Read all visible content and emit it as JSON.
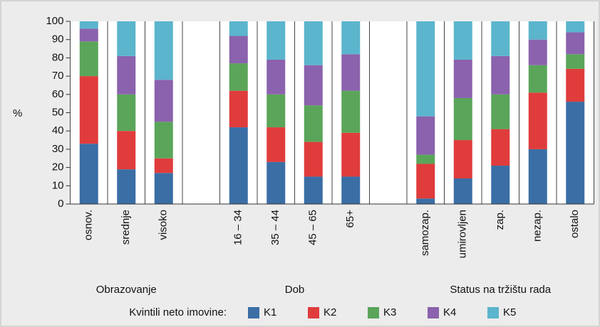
{
  "chart_data": {
    "type": "stacked_bar",
    "y_label": "%",
    "legend_title": "Kvintili neto imovine:",
    "groups": [
      "Obrazovanje",
      "Dob",
      "Status na tržištu rada"
    ],
    "categories": [
      "osnov.",
      "srednje",
      "visoko",
      null,
      "16 – 34",
      "35 – 44",
      "45 – 65",
      "65+",
      null,
      "samozap.",
      "umirovljen",
      "zap.",
      "nezap.",
      "ostalo"
    ],
    "series": [
      {
        "name": "K1",
        "color": "#3a6ea5",
        "values": [
          33,
          19,
          17,
          null,
          42,
          23,
          15,
          15,
          null,
          3,
          14,
          21,
          30,
          56
        ]
      },
      {
        "name": "K2",
        "color": "#e03c3c",
        "values": [
          37,
          21,
          8,
          null,
          20,
          19,
          19,
          24,
          null,
          19,
          21,
          20,
          31,
          18
        ]
      },
      {
        "name": "K3",
        "color": "#5aa55a",
        "values": [
          19,
          20,
          20,
          null,
          15,
          18,
          20,
          23,
          null,
          5,
          23,
          19,
          15,
          8
        ]
      },
      {
        "name": "K4",
        "color": "#8a62ad",
        "values": [
          7,
          21,
          23,
          null,
          15,
          19,
          22,
          20,
          null,
          21,
          21,
          21,
          14,
          12
        ]
      },
      {
        "name": "K5",
        "color": "#5bb5cc",
        "values": [
          4,
          19,
          32,
          null,
          8,
          21,
          24,
          18,
          null,
          52,
          21,
          19,
          10,
          6
        ]
      }
    ],
    "ylim": [
      0,
      100
    ],
    "yticks": [
      0,
      10,
      20,
      30,
      40,
      50,
      60,
      70,
      80,
      90,
      100
    ]
  }
}
